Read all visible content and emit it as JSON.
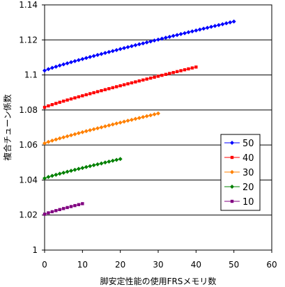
{
  "chart_data": {
    "type": "line",
    "title": "",
    "xlabel": "脚安定性能の使用FRSメモリ数",
    "ylabel": "複合チューン係数",
    "xlim": [
      0,
      60
    ],
    "ylim": [
      1,
      1.14
    ],
    "x_ticks": [
      "0",
      "10",
      "20",
      "30",
      "40",
      "50",
      "60"
    ],
    "y_ticks": [
      "1",
      "1.02",
      "1.04",
      "1.06",
      "1.08",
      "1.1",
      "1.12",
      "1.14"
    ],
    "grid": "horizontal",
    "legend_position": "right",
    "series": [
      {
        "name": "50",
        "color": "#0000ff",
        "marker": "diamond",
        "x_range": [
          0,
          50
        ],
        "start": 1.1025,
        "end": 1.1305
      },
      {
        "name": "40",
        "color": "#ff0000",
        "marker": "square",
        "x_range": [
          0,
          40
        ],
        "start": 1.0815,
        "end": 1.1045
      },
      {
        "name": "30",
        "color": "#ff8000",
        "marker": "diamond",
        "x_range": [
          0,
          30
        ],
        "start": 1.061,
        "end": 1.078
      },
      {
        "name": "20",
        "color": "#008000",
        "marker": "diamond",
        "x_range": [
          0,
          20
        ],
        "start": 1.041,
        "end": 1.052
      },
      {
        "name": "10",
        "color": "#800080",
        "marker": "square",
        "x_range": [
          0,
          10
        ],
        "start": 1.0205,
        "end": 1.0265
      }
    ]
  }
}
